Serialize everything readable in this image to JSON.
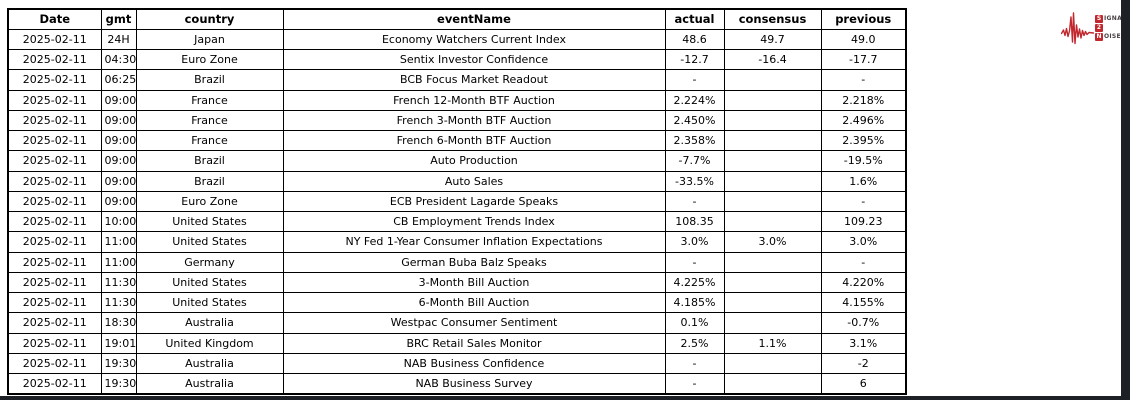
{
  "page": {
    "background": "#ffffff",
    "edge_color": "#1d2024"
  },
  "logo": {
    "name": "Signal 2 Noise",
    "signal_initial": "S",
    "signal_rest": "IGNAL",
    "middle_number": "2",
    "noise_initial": "N",
    "noise_rest": "OISE",
    "accent_red": "#c1272d",
    "waveform_icon": "ekg-waveform-icon"
  },
  "table": {
    "columns": [
      "Date",
      "gmt",
      "country",
      "eventName",
      "actual",
      "consensus",
      "previous"
    ],
    "rows": [
      [
        "2025-02-11",
        "24H",
        "Japan",
        "Economy Watchers Current Index",
        "48.6",
        "49.7",
        "49.0"
      ],
      [
        "2025-02-11",
        "04:30",
        "Euro Zone",
        "Sentix Investor Confidence",
        "-12.7",
        "-16.4",
        "-17.7"
      ],
      [
        "2025-02-11",
        "06:25",
        "Brazil",
        "BCB Focus Market Readout",
        "-",
        "",
        "-"
      ],
      [
        "2025-02-11",
        "09:00",
        "France",
        "French 12-Month BTF Auction",
        "2.224%",
        "",
        "2.218%"
      ],
      [
        "2025-02-11",
        "09:00",
        "France",
        "French 3-Month BTF Auction",
        "2.450%",
        "",
        "2.496%"
      ],
      [
        "2025-02-11",
        "09:00",
        "France",
        "French 6-Month BTF Auction",
        "2.358%",
        "",
        "2.395%"
      ],
      [
        "2025-02-11",
        "09:00",
        "Brazil",
        "Auto Production",
        "-7.7%",
        "",
        "-19.5%"
      ],
      [
        "2025-02-11",
        "09:00",
        "Brazil",
        "Auto Sales",
        "-33.5%",
        "",
        "1.6%"
      ],
      [
        "2025-02-11",
        "09:00",
        "Euro Zone",
        "ECB President Lagarde Speaks",
        "-",
        "",
        "-"
      ],
      [
        "2025-02-11",
        "10:00",
        "United States",
        "CB Employment Trends Index",
        "108.35",
        "",
        "109.23"
      ],
      [
        "2025-02-11",
        "11:00",
        "United States",
        "NY Fed 1-Year Consumer Inflation Expectations",
        "3.0%",
        "3.0%",
        "3.0%"
      ],
      [
        "2025-02-11",
        "11:00",
        "Germany",
        "German Buba Balz Speaks",
        "-",
        "",
        "-"
      ],
      [
        "2025-02-11",
        "11:30",
        "United States",
        "3-Month Bill Auction",
        "4.225%",
        "",
        "4.220%"
      ],
      [
        "2025-02-11",
        "11:30",
        "United States",
        "6-Month Bill Auction",
        "4.185%",
        "",
        "4.155%"
      ],
      [
        "2025-02-11",
        "18:30",
        "Australia",
        "Westpac Consumer Sentiment",
        "0.1%",
        "",
        "-0.7%"
      ],
      [
        "2025-02-11",
        "19:01",
        "United Kingdom",
        "BRC Retail Sales Monitor",
        "2.5%",
        "1.1%",
        "3.1%"
      ],
      [
        "2025-02-11",
        "19:30",
        "Australia",
        "NAB Business Confidence",
        "-",
        "",
        "-2"
      ],
      [
        "2025-02-11",
        "19:30",
        "Australia",
        "NAB Business Survey",
        "-",
        "",
        "6"
      ]
    ]
  }
}
